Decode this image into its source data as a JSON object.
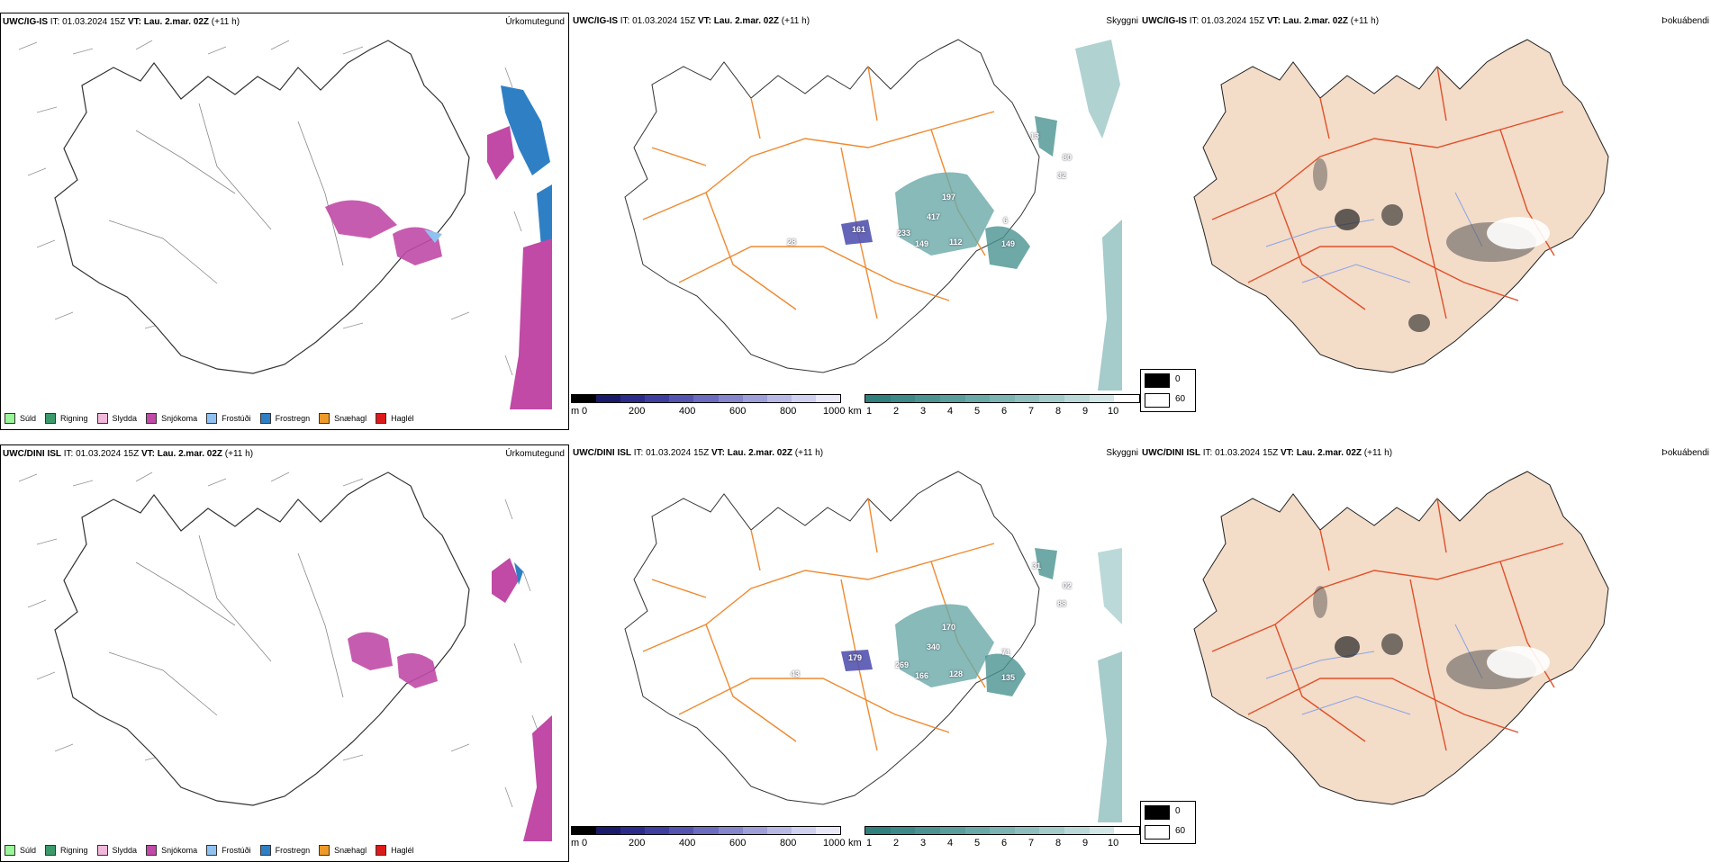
{
  "rows": [
    {
      "header_model": "UWC/IG-IS",
      "header_rest": "IT: 01.03.2024 15Z",
      "header_vt_label": "VT: Lau. 2.mar. 02Z",
      "header_lead": "(+11 h)",
      "precip_title": "Úrkomutegund",
      "cloud_title": "Skyggni",
      "fog_title": "Þokuábendi",
      "visibility_labels": [
        "161",
        "417",
        "197",
        "233",
        "149",
        "112",
        "149",
        "6",
        "13",
        "80",
        "32",
        "28"
      ]
    },
    {
      "header_model": "UWC/DINI ISL",
      "header_rest": "IT: 01.03.2024 15Z",
      "header_vt_label": "VT: Lau. 2.mar. 02Z",
      "header_lead": "(+11 h)",
      "precip_title": "Úrkomutegund",
      "cloud_title": "Skyggni",
      "fog_title": "Þokuábendi",
      "visibility_labels": [
        "179",
        "340",
        "170",
        "269",
        "166",
        "128",
        "135",
        "71",
        "31",
        "02",
        "88",
        "43"
      ]
    }
  ],
  "precip_legend": [
    {
      "label": "Súld",
      "color": "#98f598"
    },
    {
      "label": "Rigning",
      "color": "#3a9a6a"
    },
    {
      "label": "Slydda",
      "color": "#f2b8dc"
    },
    {
      "label": "Snjókoma",
      "color": "#c04aa6"
    },
    {
      "label": "Frostúði",
      "color": "#8fc2f0"
    },
    {
      "label": "Frostregn",
      "color": "#2f7fc4"
    },
    {
      "label": "Snæhagl",
      "color": "#ee9a2a"
    },
    {
      "label": "Haglél",
      "color": "#dd1a1a"
    }
  ],
  "cloud_base_scale": {
    "unit": "m",
    "ticks": [
      "0",
      "200",
      "400",
      "600",
      "800",
      "1000"
    ],
    "colors": [
      "#000000",
      "#1a1a6a",
      "#2b2b8c",
      "#3e3ea0",
      "#5353b0",
      "#6b6bbf",
      "#8585cb",
      "#9e9ed8",
      "#b8b8e4",
      "#d0d0ef",
      "#e8e8f8"
    ]
  },
  "visibility_scale": {
    "unit": "km",
    "ticks": [
      "1",
      "2",
      "3",
      "4",
      "5",
      "6",
      "7",
      "8",
      "9",
      "10"
    ],
    "colors": [
      "#2f7f7c",
      "#3c8987",
      "#4a9391",
      "#599e9c",
      "#69a9a7",
      "#7bb4b2",
      "#8ebfbe",
      "#a3cbca",
      "#b9d8d7",
      "#d1e6e5",
      "#ffffff"
    ]
  },
  "fog_legend": {
    "ticks": [
      "0",
      "60"
    ]
  },
  "colors": {
    "road": "#ee8a30",
    "coast": "#000000",
    "land_fog": "#f3dcc8",
    "river": "#8aa4e8",
    "road_fog": "#e0502a"
  }
}
